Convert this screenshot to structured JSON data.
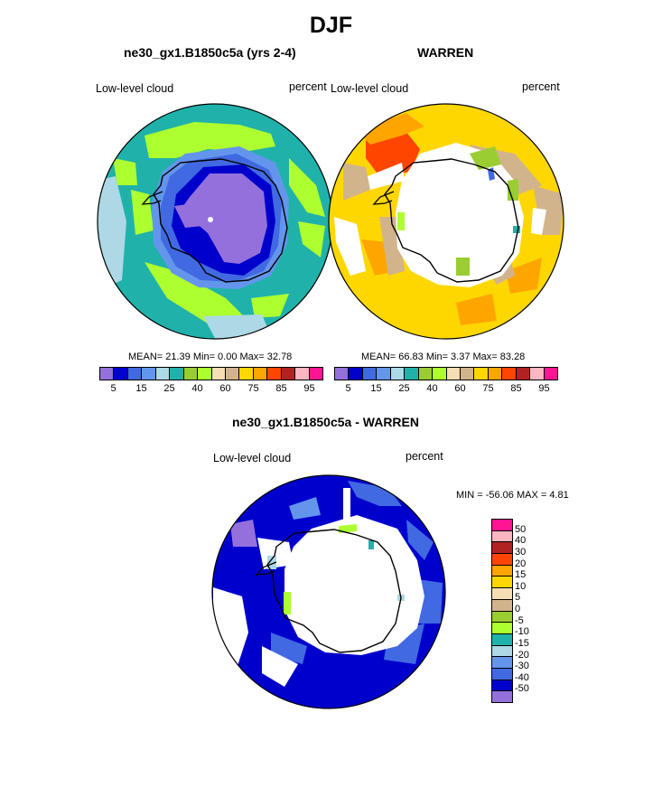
{
  "page_title": "DJF",
  "chart_data": [
    {
      "type": "heatmap",
      "projection": "south-polar-stereographic",
      "title": "ne30_gx1.B1850c5a (yrs 2-4)",
      "left_label": "Low-level cloud",
      "right_label": "percent",
      "stats_text": "MEAN=  21.39  Min=   0.00  Max=  32.78",
      "stats": {
        "mean": 21.39,
        "min": 0.0,
        "max": 32.78
      },
      "colorbar": {
        "levels": [
          5,
          10,
          15,
          20,
          25,
          30,
          40,
          50,
          60,
          70,
          75,
          80,
          85,
          90,
          95
        ],
        "tick_labels": [
          "5",
          "15",
          "25",
          "40",
          "60",
          "75",
          "85",
          "95"
        ]
      }
    },
    {
      "type": "heatmap",
      "projection": "south-polar-stereographic",
      "title": "WARREN",
      "left_label": "Low-level cloud",
      "right_label": "percent",
      "stats_text": "MEAN=  66.83  Min=   3.37  Max=  83.28",
      "stats": {
        "mean": 66.83,
        "min": 3.37,
        "max": 83.28
      },
      "colorbar": {
        "levels": [
          5,
          10,
          15,
          20,
          25,
          30,
          40,
          50,
          60,
          70,
          75,
          80,
          85,
          90,
          95
        ],
        "tick_labels": [
          "5",
          "15",
          "25",
          "40",
          "60",
          "75",
          "85",
          "95"
        ]
      }
    },
    {
      "type": "heatmap",
      "projection": "south-polar-stereographic",
      "title": "ne30_gx1.B1850c5a - WARREN",
      "left_label": "Low-level cloud",
      "right_label": "percent",
      "stats_text": "MIN = -56.06 MAX =   4.81",
      "stats": {
        "min": -56.06,
        "max": 4.81
      },
      "colorbar": {
        "levels": [
          50,
          40,
          30,
          20,
          15,
          10,
          5,
          0,
          -5,
          -10,
          -15,
          -20,
          -30,
          -40,
          -50
        ],
        "tick_labels": [
          "50",
          "40",
          "30",
          "20",
          "15",
          "10",
          "5",
          "0",
          "-5",
          "-10",
          "-15",
          "-20",
          "-30",
          "-40",
          "-50"
        ]
      }
    }
  ],
  "colors": {
    "main_scale": [
      "#9370db",
      "#0000cd",
      "#4169e1",
      "#6495ed",
      "#add8e6",
      "#20b2aa",
      "#9acd32",
      "#adff2f",
      "#f5deb3",
      "#d2b48c",
      "#ffd700",
      "#ffa500",
      "#ff4500",
      "#b22222",
      "#ffb6c1",
      "#ff1493"
    ],
    "diff_scale": [
      "#ff1493",
      "#ffb6c1",
      "#b22222",
      "#ff4500",
      "#ffa500",
      "#ffd700",
      "#f5deb3",
      "#d2b48c",
      "#9acd32",
      "#adff2f",
      "#20b2aa",
      "#add8e6",
      "#6495ed",
      "#4169e1",
      "#0000cd",
      "#9370db"
    ]
  }
}
